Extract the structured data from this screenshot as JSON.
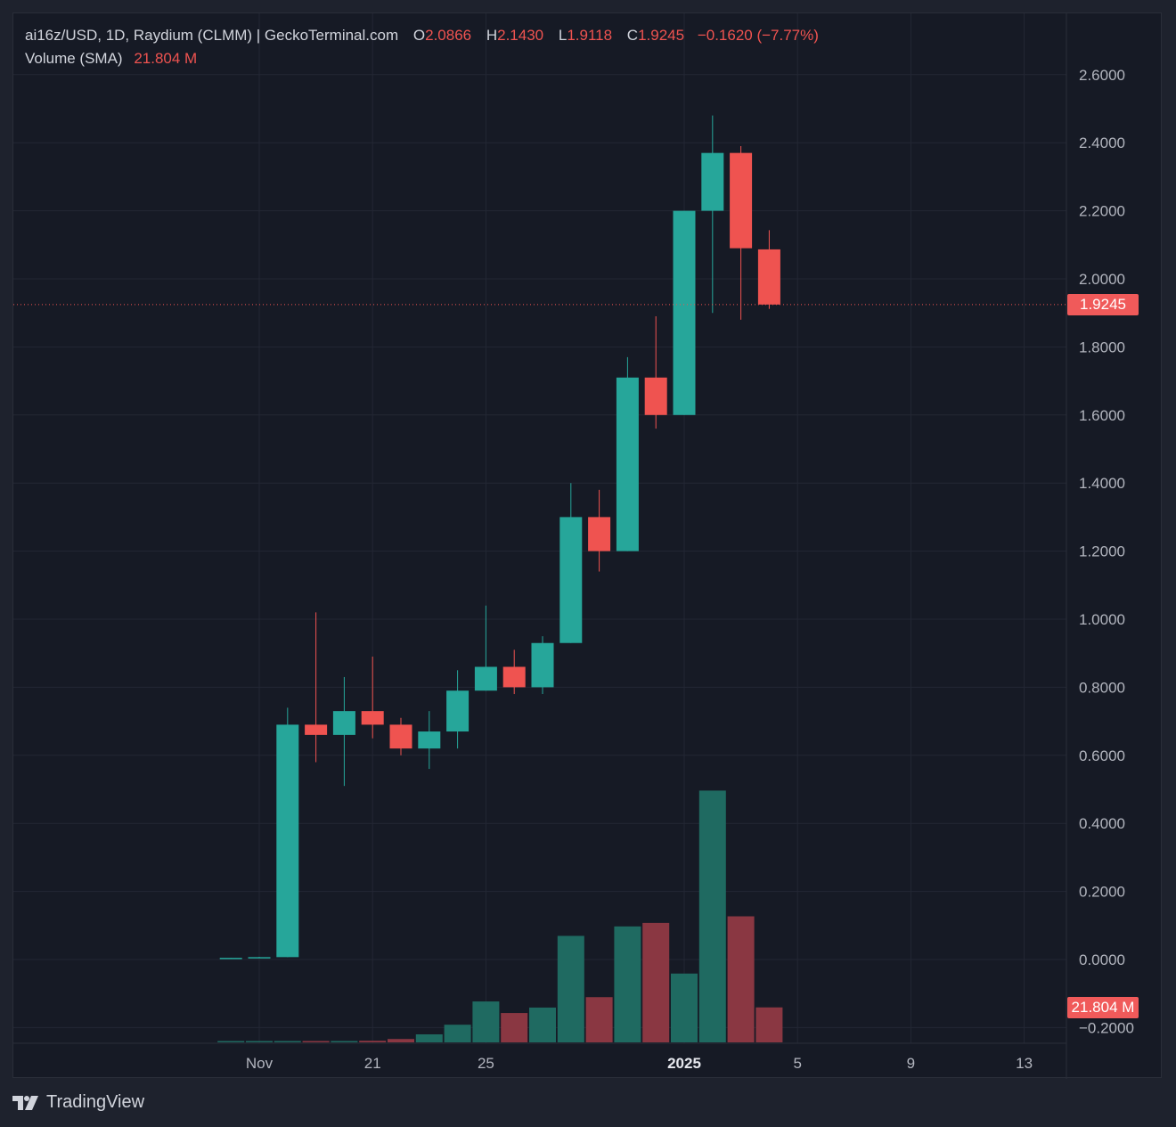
{
  "legend": {
    "symbol": "ai16z/USD, 1D, Raydium (CLMM) | GeckoTerminal.com",
    "open_label": "O",
    "open": "2.0866",
    "high_label": "H",
    "high": "2.1430",
    "low_label": "L",
    "low": "1.9118",
    "close_label": "C",
    "close": "1.9245",
    "change": "−0.1620 (−7.77%)",
    "volume_label": "Volume (SMA)",
    "volume_value": "21.804 M"
  },
  "price_tag": "1.9245",
  "volume_tag": "21.804 M",
  "footer": {
    "brand": "TradingView"
  },
  "colors": {
    "up": "#26a69a",
    "down": "#ef5350",
    "vol_up": "#1f6a61",
    "vol_down": "#8a3742"
  },
  "chart_data": {
    "type": "candlestick",
    "y_axis": {
      "ticks": [
        "2.6000",
        "2.4000",
        "2.2000",
        "2.0000",
        "1.8000",
        "1.6000",
        "1.4000",
        "1.2000",
        "1.0000",
        "0.8000",
        "0.6000",
        "0.4000",
        "0.2000",
        "0.0000",
        "−0.2000"
      ],
      "range": [
        -0.24,
        2.78
      ]
    },
    "x_axis": {
      "ticks": [
        {
          "label": "Nov",
          "day": 0,
          "bold": false
        },
        {
          "label": "21",
          "day": 4,
          "bold": false
        },
        {
          "label": "25",
          "day": 8,
          "bold": false
        },
        {
          "label": "2025",
          "day": 15,
          "bold": true
        },
        {
          "label": "5",
          "day": 19,
          "bold": false
        },
        {
          "label": "9",
          "day": 23,
          "bold": false
        },
        {
          "label": "13",
          "day": 27,
          "bold": false
        }
      ]
    },
    "candles": [
      {
        "day": -1,
        "o": 0.004,
        "h": 0.005,
        "l": 0.003,
        "c": 0.005
      },
      {
        "day": 0,
        "o": 0.005,
        "h": 0.008,
        "l": 0.004,
        "c": 0.007
      },
      {
        "day": 1,
        "o": 0.007,
        "h": 0.74,
        "l": 0.007,
        "c": 0.69
      },
      {
        "day": 2,
        "o": 0.69,
        "h": 1.02,
        "l": 0.58,
        "c": 0.66
      },
      {
        "day": 3,
        "o": 0.66,
        "h": 0.83,
        "l": 0.51,
        "c": 0.73
      },
      {
        "day": 4,
        "o": 0.73,
        "h": 0.89,
        "l": 0.65,
        "c": 0.69
      },
      {
        "day": 5,
        "o": 0.69,
        "h": 0.71,
        "l": 0.6,
        "c": 0.62
      },
      {
        "day": 6,
        "o": 0.62,
        "h": 0.73,
        "l": 0.56,
        "c": 0.67
      },
      {
        "day": 7,
        "o": 0.67,
        "h": 0.85,
        "l": 0.62,
        "c": 0.79
      },
      {
        "day": 8,
        "o": 0.79,
        "h": 1.04,
        "l": 0.79,
        "c": 0.86
      },
      {
        "day": 9,
        "o": 0.86,
        "h": 0.91,
        "l": 0.78,
        "c": 0.8
      },
      {
        "day": 10,
        "o": 0.8,
        "h": 0.95,
        "l": 0.78,
        "c": 0.93
      },
      {
        "day": 11,
        "o": 0.93,
        "h": 1.4,
        "l": 0.93,
        "c": 1.3
      },
      {
        "day": 12,
        "o": 1.3,
        "h": 1.38,
        "l": 1.14,
        "c": 1.2
      },
      {
        "day": 13,
        "o": 1.2,
        "h": 1.77,
        "l": 1.2,
        "c": 1.71
      },
      {
        "day": 14,
        "o": 1.71,
        "h": 1.89,
        "l": 1.56,
        "c": 1.6
      },
      {
        "day": 15,
        "o": 1.6,
        "h": 2.2,
        "l": 1.6,
        "c": 2.2
      },
      {
        "day": 16,
        "o": 2.2,
        "h": 2.48,
        "l": 1.9,
        "c": 2.37
      },
      {
        "day": 17,
        "o": 2.37,
        "h": 2.39,
        "l": 1.88,
        "c": 2.09
      },
      {
        "day": 18,
        "o": 2.0866,
        "h": 2.143,
        "l": 1.9118,
        "c": 1.9245
      }
    ],
    "volume": {
      "axis_max_M": 160,
      "bars_M": [
        0.4,
        0.4,
        0.5,
        0.6,
        0.7,
        1.0,
        2.1,
        5.0,
        11.0,
        25.5,
        18.3,
        21.7,
        66.4,
        28.2,
        72.3,
        74.5,
        42.9,
        157.0,
        78.6,
        21.804
      ]
    }
  }
}
